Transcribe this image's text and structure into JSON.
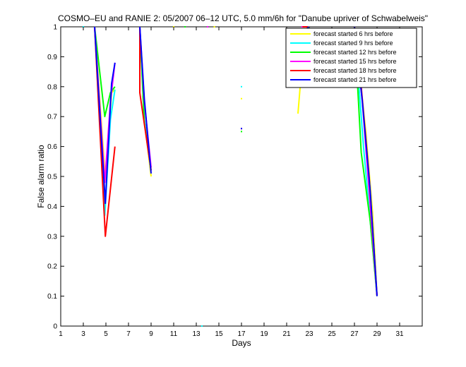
{
  "chart_data": {
    "type": "line",
    "title": "COSMO–EU and RANIE 2: 05/2007 06–12 UTC, 5.0 mm/6h for \"Danube upriver of Schwabelweis\"",
    "xlabel": "Days",
    "ylabel": "False alarm ratio",
    "xlim": [
      1,
      33
    ],
    "ylim": [
      0,
      1
    ],
    "xticks": [
      1,
      3,
      5,
      7,
      9,
      11,
      13,
      15,
      17,
      19,
      21,
      23,
      25,
      27,
      29,
      31
    ],
    "yticks": [
      0,
      0.1,
      0.2,
      0.3,
      0.4,
      0.5,
      0.6,
      0.7,
      0.8,
      0.9,
      1
    ],
    "ytick_labels": [
      "0",
      "0.1",
      "0.2",
      "0.3",
      "0.4",
      "0.5",
      "0.6",
      "0.7",
      "0.8",
      "0.9",
      "1"
    ],
    "grid": false,
    "legend_position": "top-right",
    "series": [
      {
        "name": "forecast started 6 hrs before",
        "color": "#ffff00",
        "segments": [
          [
            [
              4,
              1
            ],
            [
              4.95,
              0.49
            ],
            [
              5.5,
              0.78
            ],
            [
              5.8,
              0.79
            ]
          ],
          [
            [
              8,
              1
            ],
            [
              8.4,
              0.69
            ],
            [
              9,
              0.5
            ]
          ],
          [
            [
              22,
              0.71
            ],
            [
              22.5,
              0.94
            ],
            [
              22.9,
              1
            ]
          ],
          [
            [
              27,
              1
            ],
            [
              28,
              0.65
            ],
            [
              28.6,
              0.38
            ],
            [
              29,
              0.1
            ]
          ]
        ],
        "points": [
          [
            11,
            1
          ],
          [
            14,
            1
          ],
          [
            14.6,
            1
          ],
          [
            17,
            0.76
          ]
        ]
      },
      {
        "name": "forecast started 9 hrs before",
        "color": "#00ffff",
        "segments": [
          [
            [
              4,
              1
            ],
            [
              4.9,
              0.37
            ],
            [
              5.4,
              0.69
            ],
            [
              5.8,
              0.79
            ]
          ],
          [
            [
              8,
              1
            ],
            [
              8.4,
              0.69
            ],
            [
              9,
              0.53
            ]
          ],
          [
            [
              22,
              0.81
            ],
            [
              22.5,
              0.96
            ],
            [
              22.9,
              1
            ]
          ],
          [
            [
              27,
              1
            ],
            [
              27.8,
              0.6
            ],
            [
              28.5,
              0.31
            ],
            [
              29,
              0.1
            ]
          ]
        ],
        "points": [
          [
            3,
            1
          ],
          [
            13.5,
            0
          ],
          [
            17,
            0.8
          ]
        ]
      },
      {
        "name": "forecast started 12 hrs before",
        "color": "#00ff00",
        "segments": [
          [
            [
              4,
              1
            ],
            [
              4.9,
              0.7
            ],
            [
              5.4,
              0.78
            ],
            [
              5.8,
              0.8
            ]
          ],
          [
            [
              8,
              1
            ],
            [
              8.4,
              0.68
            ],
            [
              9,
              0.52
            ]
          ],
          [
            [
              22,
              0.91
            ],
            [
              22.5,
              0.98
            ],
            [
              22.9,
              1
            ]
          ],
          [
            [
              27,
              1
            ],
            [
              27.6,
              0.58
            ],
            [
              28.4,
              0.35
            ],
            [
              29,
              0.1
            ]
          ]
        ],
        "points": [
          [
            12,
            1
          ],
          [
            17,
            0.65
          ]
        ]
      },
      {
        "name": "forecast started 15 hrs before",
        "color": "#ff00ff",
        "segments": [
          [
            [
              4,
              1
            ],
            [
              4.9,
              0.48
            ],
            [
              5.4,
              0.75
            ],
            [
              5.8,
              0.88
            ]
          ],
          [
            [
              8,
              1
            ],
            [
              8.4,
              0.75
            ],
            [
              9,
              0.53
            ]
          ],
          [
            [
              22.3,
              1
            ],
            [
              22.9,
              1
            ]
          ],
          [
            [
              27,
              1
            ],
            [
              27.7,
              0.75
            ],
            [
              28.4,
              0.4
            ],
            [
              29,
              0.1
            ]
          ]
        ],
        "points": [
          [
            14,
            1
          ],
          [
            17,
            0.66
          ]
        ]
      },
      {
        "name": "forecast started 18 hrs before",
        "color": "#ff0000",
        "segments": [
          [
            [
              4,
              1
            ],
            [
              4.95,
              0.3
            ],
            [
              5.8,
              0.6
            ]
          ],
          [
            [
              8,
              1
            ],
            [
              8,
              0.78
            ],
            [
              9,
              0.52
            ]
          ],
          [
            [
              22.4,
              1
            ],
            [
              22.9,
              1
            ]
          ],
          [
            [
              27,
              1
            ],
            [
              27.6,
              0.8
            ],
            [
              28.3,
              0.5
            ],
            [
              29,
              0.1
            ]
          ]
        ],
        "points": [
          [
            17,
            0.66
          ]
        ]
      },
      {
        "name": "forecast started 21 hrs before",
        "color": "#0000ff",
        "segments": [
          [
            [
              4,
              1
            ],
            [
              4.95,
              0.41
            ],
            [
              5.5,
              0.81
            ],
            [
              5.8,
              0.88
            ]
          ],
          [
            [
              8,
              1
            ],
            [
              8.4,
              0.76
            ],
            [
              9,
              0.51
            ]
          ],
          [
            [
              22,
              0.91
            ],
            [
              22.5,
              0.95
            ],
            [
              22.9,
              1
            ]
          ],
          [
            [
              27,
              1
            ],
            [
              27.7,
              0.75
            ],
            [
              28.4,
              0.45
            ],
            [
              29,
              0.1
            ]
          ]
        ],
        "points": [
          [
            17,
            0.66
          ]
        ]
      }
    ]
  }
}
